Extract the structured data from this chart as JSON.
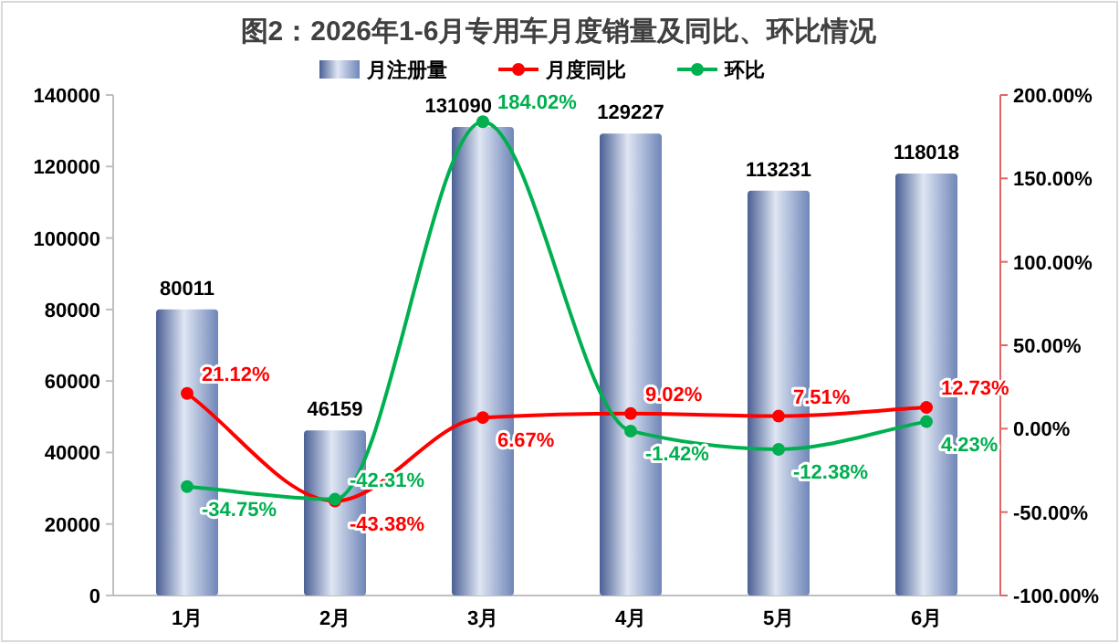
{
  "chart_data": {
    "type": "bar",
    "title": "图2：2026年1-6月专用车月度销量及同比、环比情况",
    "categories": [
      "1月",
      "2月",
      "3月",
      "4月",
      "5月",
      "6月"
    ],
    "series": [
      {
        "name": "月注册量",
        "color": "#6f86b8",
        "values": [
          80011,
          46159,
          131090,
          129227,
          113231,
          118018
        ],
        "value_labels": [
          "80011",
          "46159",
          "131090",
          "129227",
          "113231",
          "118018"
        ]
      },
      {
        "name": "月度同比",
        "type": "line",
        "axis": "y2",
        "color": "#ff0000",
        "marker": "circle",
        "values": [
          21.12,
          -43.38,
          6.67,
          9.02,
          7.51,
          12.73
        ],
        "value_labels": [
          "21.12%",
          "-43.38%",
          "6.67%",
          "9.02%",
          "7.51%",
          "12.73%"
        ]
      },
      {
        "name": "环比",
        "type": "line",
        "axis": "y2",
        "color": "#00b050",
        "marker": "circle",
        "values": [
          -34.75,
          -42.31,
          184.02,
          -1.42,
          -12.38,
          4.23
        ],
        "value_labels": [
          "-34.75%",
          "-42.31%",
          "184.02%",
          "-1.42%",
          "-12.38%",
          "4.23%"
        ]
      }
    ],
    "ylim": [
      0,
      140000
    ],
    "yticks": [
      0,
      20000,
      40000,
      60000,
      80000,
      100000,
      120000,
      140000
    ],
    "y2lim": [
      -100,
      200
    ],
    "y2ticks": [
      {
        "value": -100,
        "label": "-100.00%"
      },
      {
        "value": -50,
        "label": "-50.00%"
      },
      {
        "value": 0,
        "label": "0.00%"
      },
      {
        "value": 50,
        "label": "50.00%"
      },
      {
        "value": 100,
        "label": "100.00%"
      },
      {
        "value": 150,
        "label": "150.00%"
      },
      {
        "value": 200,
        "label": "200.00%"
      }
    ],
    "legend": "top",
    "grid": false
  }
}
